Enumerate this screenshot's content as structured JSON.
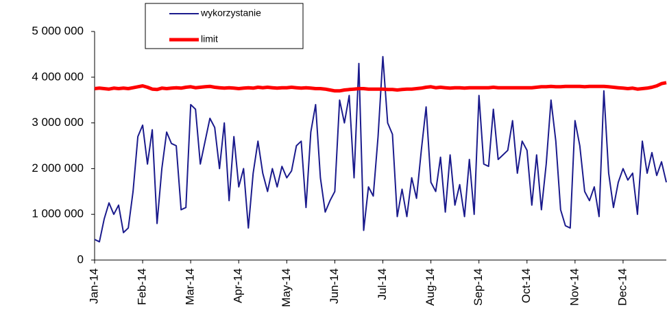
{
  "chart_data": {
    "type": "line",
    "categories": [
      "Jan-14",
      null,
      null,
      null,
      null,
      null,
      null,
      null,
      null,
      null,
      "Feb-14",
      null,
      null,
      null,
      null,
      null,
      null,
      null,
      null,
      null,
      "Mar-14",
      null,
      null,
      null,
      null,
      null,
      null,
      null,
      null,
      null,
      "Apr-14",
      null,
      null,
      null,
      null,
      null,
      null,
      null,
      null,
      null,
      "May-14",
      null,
      null,
      null,
      null,
      null,
      null,
      null,
      null,
      null,
      "Jun-14",
      null,
      null,
      null,
      null,
      null,
      null,
      null,
      null,
      null,
      "Jul-14",
      null,
      null,
      null,
      null,
      null,
      null,
      null,
      null,
      null,
      "Aug-14",
      null,
      null,
      null,
      null,
      null,
      null,
      null,
      null,
      null,
      "Sep-14",
      null,
      null,
      null,
      null,
      null,
      null,
      null,
      null,
      null,
      "Oct-14",
      null,
      null,
      null,
      null,
      null,
      null,
      null,
      null,
      null,
      "Nov-14",
      null,
      null,
      null,
      null,
      null,
      null,
      null,
      null,
      null,
      "Dec-14",
      null,
      null,
      null,
      null,
      null,
      null,
      null,
      null,
      null
    ],
    "series": [
      {
        "name": "wykorzystanie",
        "color": "#1a1a8c",
        "width": 2,
        "values": [
          450000,
          400000,
          900000,
          1250000,
          1000000,
          1200000,
          600000,
          700000,
          1500000,
          2700000,
          2950000,
          2100000,
          2850000,
          800000,
          2000000,
          2800000,
          2550000,
          2500000,
          1100000,
          1150000,
          3400000,
          3300000,
          2100000,
          2600000,
          3100000,
          2900000,
          2000000,
          3000000,
          1300000,
          2700000,
          1600000,
          2000000,
          700000,
          1900000,
          2600000,
          1900000,
          1500000,
          2000000,
          1600000,
          2050000,
          1800000,
          1950000,
          2500000,
          2600000,
          1150000,
          2800000,
          3400000,
          1800000,
          1050000,
          1300000,
          1500000,
          3500000,
          3000000,
          3600000,
          1800000,
          4300000,
          650000,
          1600000,
          1400000,
          2700000,
          4450000,
          3000000,
          2750000,
          950000,
          1550000,
          950000,
          1800000,
          1350000,
          2400000,
          3350000,
          1700000,
          1500000,
          2250000,
          1050000,
          2300000,
          1200000,
          1650000,
          950000,
          2200000,
          1000000,
          3600000,
          2100000,
          2050000,
          3300000,
          2200000,
          2300000,
          2400000,
          3050000,
          1900000,
          2600000,
          2400000,
          1200000,
          2300000,
          1100000,
          2100000,
          3500000,
          2600000,
          1100000,
          750000,
          700000,
          3050000,
          2500000,
          1500000,
          1300000,
          1600000,
          950000,
          3700000,
          1900000,
          1150000,
          1700000,
          2000000,
          1750000,
          1900000,
          1000000,
          2600000,
          1900000,
          2350000,
          1850000,
          2150000,
          1700000
        ]
      },
      {
        "name": "limit",
        "color": "#ff0000",
        "width": 5,
        "values": [
          3750000,
          3760000,
          3750000,
          3740000,
          3760000,
          3750000,
          3760000,
          3750000,
          3770000,
          3790000,
          3810000,
          3780000,
          3740000,
          3730000,
          3760000,
          3750000,
          3760000,
          3770000,
          3760000,
          3780000,
          3790000,
          3770000,
          3780000,
          3790000,
          3800000,
          3780000,
          3770000,
          3760000,
          3770000,
          3760000,
          3750000,
          3760000,
          3770000,
          3760000,
          3780000,
          3770000,
          3780000,
          3770000,
          3760000,
          3770000,
          3770000,
          3780000,
          3770000,
          3760000,
          3770000,
          3760000,
          3750000,
          3750000,
          3740000,
          3720000,
          3700000,
          3700000,
          3720000,
          3730000,
          3740000,
          3750000,
          3750000,
          3740000,
          3740000,
          3740000,
          3740000,
          3730000,
          3730000,
          3720000,
          3730000,
          3740000,
          3740000,
          3750000,
          3760000,
          3780000,
          3790000,
          3770000,
          3780000,
          3770000,
          3760000,
          3770000,
          3770000,
          3760000,
          3770000,
          3770000,
          3770000,
          3770000,
          3770000,
          3780000,
          3770000,
          3770000,
          3770000,
          3770000,
          3770000,
          3770000,
          3770000,
          3770000,
          3780000,
          3790000,
          3790000,
          3800000,
          3790000,
          3790000,
          3800000,
          3800000,
          3800000,
          3800000,
          3790000,
          3800000,
          3800000,
          3800000,
          3800000,
          3790000,
          3780000,
          3770000,
          3760000,
          3750000,
          3760000,
          3740000,
          3750000,
          3760000,
          3780000,
          3810000,
          3860000,
          3880000
        ]
      }
    ],
    "ylim": [
      0,
      5000000
    ],
    "yticks": [
      0,
      {
        "value": 1000000,
        "label": "1 000 000"
      },
      {
        "value": 2000000,
        "label": "2 000 000"
      },
      {
        "value": 3000000,
        "label": "3 000 000"
      },
      {
        "value": 4000000,
        "label": "4 000 000"
      },
      {
        "value": 5000000,
        "label": "5 000 000"
      }
    ]
  }
}
